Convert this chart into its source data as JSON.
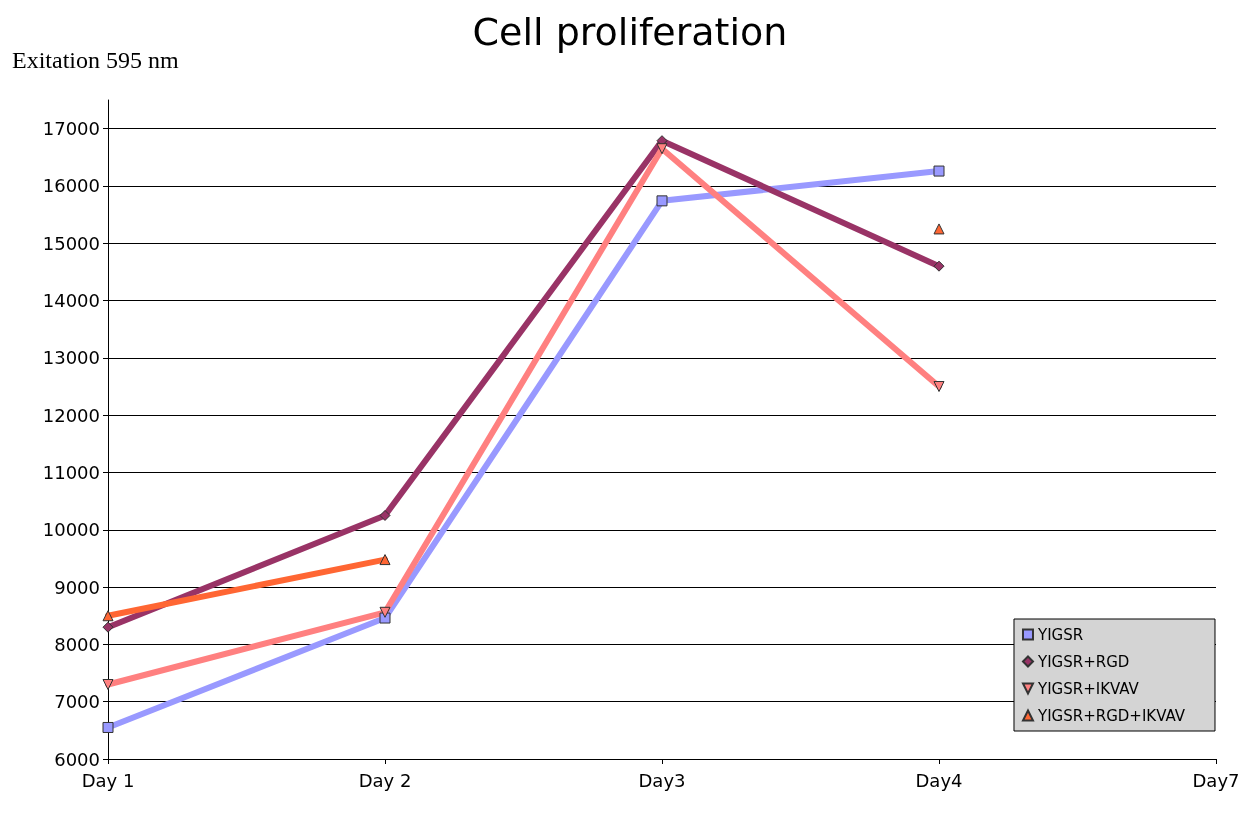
{
  "chart_data": {
    "type": "line",
    "title": "Cell proliferation",
    "annotations": [
      "Exitation 595 nm"
    ],
    "categories": [
      "Day 1",
      "Day 2",
      "Day3",
      "Day4",
      "Day7"
    ],
    "series": [
      {
        "name": "YIGSR",
        "color": "#9999ff",
        "marker": "square",
        "values": [
          6550,
          8460,
          15740,
          16260,
          null
        ]
      },
      {
        "name": "YIGSR+RGD",
        "color": "#993366",
        "marker": "diamond",
        "values": [
          8300,
          10250,
          16790,
          14600,
          null
        ]
      },
      {
        "name": "YIGSR+IKVAV",
        "color": "#ff8080",
        "marker": "triangle-down",
        "values": [
          7300,
          8560,
          16650,
          12500,
          null
        ]
      },
      {
        "name": "YIGSR+RGD+IKVAV",
        "color": "#ff6633",
        "marker": "triangle",
        "values": [
          8500,
          9480,
          null,
          15250,
          null
        ]
      }
    ],
    "ylim": [
      6000,
      17500
    ],
    "yticks": [
      6000,
      7000,
      8000,
      9000,
      10000,
      11000,
      12000,
      13000,
      14000,
      15000,
      16000,
      17000
    ],
    "grid": "y",
    "legend": "bottom right",
    "line_style": "solid"
  }
}
